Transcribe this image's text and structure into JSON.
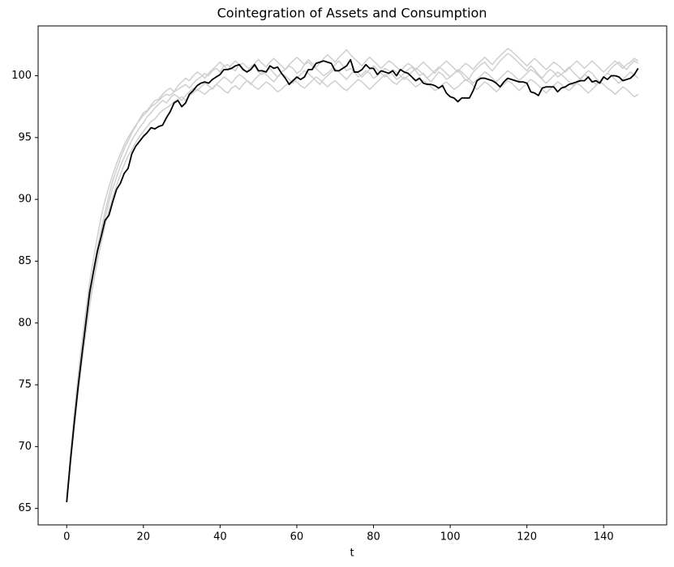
{
  "chart_data": {
    "type": "line",
    "title": "Cointegration of Assets and Consumption",
    "xlabel": "t",
    "x": [
      0,
      1,
      2,
      3,
      4,
      5,
      6,
      7,
      8,
      9,
      10,
      11,
      12,
      13,
      14,
      15,
      16,
      17,
      18,
      19,
      20,
      21,
      22,
      23,
      24,
      25,
      26,
      27,
      28,
      29,
      30,
      31,
      32,
      33,
      34,
      35,
      36,
      37,
      38,
      39,
      40,
      41,
      42,
      43,
      44,
      45,
      46,
      47,
      48,
      49,
      50,
      51,
      52,
      53,
      54,
      55,
      56,
      57,
      58,
      59,
      60,
      61,
      62,
      63,
      64,
      65,
      66,
      67,
      68,
      69,
      70,
      71,
      72,
      73,
      74,
      75,
      76,
      77,
      78,
      79,
      80,
      81,
      82,
      83,
      84,
      85,
      86,
      87,
      88,
      89,
      90,
      91,
      92,
      93,
      94,
      95,
      96,
      97,
      98,
      99,
      100,
      101,
      102,
      103,
      104,
      105,
      106,
      107,
      108,
      109,
      110,
      111,
      112,
      113,
      114,
      115,
      116,
      117,
      118,
      119,
      120,
      121,
      122,
      123,
      124,
      125,
      126,
      127,
      128,
      129,
      130,
      131,
      132,
      133,
      134,
      135,
      136,
      137,
      138,
      139,
      140,
      141,
      142,
      143,
      144,
      145,
      146,
      147,
      148,
      149
    ],
    "xlim": [
      -7.45,
      156.45
    ],
    "xticks": [
      0,
      20,
      40,
      60,
      80,
      100,
      120,
      140
    ],
    "ylim": [
      63.67,
      104.03
    ],
    "yticks": [
      65,
      70,
      75,
      80,
      85,
      90,
      95,
      100
    ],
    "grid": false,
    "series": [
      {
        "color": "#cfcfcf",
        "values": [
          65.8,
          69.5,
          72.8,
          75.8,
          78.5,
          81.0,
          83.3,
          85.2,
          87.0,
          88.6,
          89.9,
          91.0,
          92.0,
          92.9,
          93.7,
          94.4,
          95.0,
          95.5,
          96.0,
          96.4,
          96.8,
          97.1,
          97.5,
          97.7,
          98.0,
          98.3,
          98.5,
          98.4,
          98.7,
          98.9,
          99.1,
          99.3,
          99.0,
          99.4,
          99.7,
          99.9,
          100.2,
          100.0,
          100.4,
          100.6,
          100.3,
          100.8,
          100.9,
          100.6,
          100.4,
          100.9,
          101.0,
          100.7,
          100.5,
          100.8,
          100.3,
          100.1,
          100.4,
          100.6,
          100.2,
          99.9,
          100.3,
          100.5,
          100.8,
          100.6,
          100.2,
          100.4,
          100.9,
          101.1,
          100.8,
          100.6,
          100.3,
          100.0,
          100.2,
          100.5,
          100.9,
          101.2,
          100.8,
          100.4,
          100.6,
          100.3,
          99.9,
          100.1,
          100.4,
          100.2,
          99.8,
          100.0,
          100.3,
          100.6,
          100.4,
          100.1,
          99.7,
          99.9,
          100.2,
          100.5,
          100.7,
          100.4,
          100.0,
          100.2,
          99.8,
          99.5,
          99.9,
          100.3,
          100.1,
          99.7,
          99.9,
          100.2,
          100.4,
          100.1,
          99.6,
          99.8,
          100.3,
          100.6,
          100.9,
          101.1,
          100.7,
          100.4,
          100.8,
          101.2,
          101.5,
          101.8,
          101.6,
          101.3,
          101.0,
          100.7,
          100.4,
          100.8,
          100.5,
          100.1,
          99.8,
          100.2,
          100.5,
          100.3,
          99.9,
          100.1,
          100.4,
          100.7,
          100.3,
          100.0,
          99.7,
          100.1,
          100.4,
          100.2,
          99.8,
          99.5,
          99.9,
          100.2,
          100.6,
          100.9,
          101.1,
          100.8,
          100.5,
          100.9,
          101.2,
          101.0
        ]
      },
      {
        "color": "#cfcfcf",
        "values": [
          65.6,
          68.8,
          71.7,
          74.4,
          76.9,
          79.2,
          81.4,
          83.3,
          85.0,
          86.5,
          87.9,
          89.1,
          90.2,
          91.1,
          92.0,
          92.8,
          93.5,
          94.0,
          94.6,
          95.1,
          95.5,
          95.9,
          96.3,
          96.5,
          96.9,
          97.2,
          97.4,
          97.6,
          97.9,
          98.1,
          98.3,
          98.0,
          98.4,
          98.6,
          98.9,
          98.7,
          98.5,
          98.8,
          99.0,
          99.3,
          99.1,
          98.8,
          98.6,
          99.0,
          99.2,
          98.9,
          99.3,
          99.6,
          99.4,
          99.1,
          98.9,
          99.2,
          99.5,
          99.3,
          99.0,
          98.7,
          98.9,
          99.2,
          99.4,
          99.7,
          99.5,
          99.2,
          99.0,
          99.3,
          99.6,
          99.9,
          99.7,
          99.4,
          99.1,
          99.4,
          99.6,
          99.3,
          99.0,
          98.8,
          99.1,
          99.4,
          99.7,
          99.5,
          99.2,
          98.9,
          99.2,
          99.5,
          99.8,
          100.1,
          99.8,
          99.5,
          99.3,
          99.6,
          99.9,
          99.7,
          99.4,
          99.1,
          99.3,
          99.6,
          99.4,
          99.1,
          98.8,
          99.0,
          99.3,
          99.5,
          99.2,
          98.9,
          99.1,
          99.4,
          99.7,
          99.5,
          99.2,
          98.9,
          99.2,
          99.5,
          99.3,
          99.0,
          98.7,
          99.0,
          99.3,
          99.6,
          99.4,
          99.1,
          98.8,
          99.1,
          99.4,
          99.7,
          99.5,
          99.2,
          98.9,
          98.6,
          98.9,
          99.2,
          99.5,
          99.3,
          99.0,
          98.8,
          99.1,
          99.4,
          99.2,
          98.9,
          98.6,
          98.9,
          99.2,
          99.5,
          99.3,
          99.0,
          98.8,
          98.5,
          98.8,
          99.1,
          98.9,
          98.6,
          98.3,
          98.5
        ]
      },
      {
        "color": "#cfcfcf",
        "values": [
          66.0,
          69.2,
          72.2,
          75.1,
          77.7,
          80.2,
          82.4,
          84.3,
          86.1,
          87.6,
          89.0,
          90.3,
          91.5,
          92.4,
          93.3,
          94.1,
          94.7,
          95.4,
          95.9,
          96.5,
          97.0,
          97.2,
          97.6,
          98.0,
          98.1,
          98.5,
          98.8,
          99.0,
          98.7,
          99.2,
          99.5,
          99.8,
          99.6,
          100.0,
          100.3,
          100.1,
          99.8,
          100.2,
          100.5,
          100.8,
          101.1,
          100.8,
          100.5,
          100.9,
          101.2,
          100.9,
          100.6,
          100.3,
          100.7,
          101.0,
          101.3,
          101.0,
          100.7,
          101.1,
          101.4,
          101.1,
          100.8,
          100.5,
          100.9,
          101.2,
          101.5,
          101.2,
          100.9,
          101.3,
          101.0,
          100.7,
          101.0,
          101.4,
          101.7,
          101.4,
          101.1,
          101.5,
          101.8,
          102.1,
          101.7,
          101.4,
          101.1,
          100.8,
          101.2,
          101.5,
          101.2,
          100.9,
          100.6,
          100.9,
          101.2,
          101.0,
          100.7,
          100.4,
          100.7,
          101.0,
          100.8,
          100.5,
          100.8,
          101.1,
          100.8,
          100.5,
          100.2,
          100.6,
          100.9,
          101.2,
          100.9,
          100.6,
          100.3,
          100.7,
          101.0,
          100.8,
          100.5,
          100.9,
          101.2,
          101.5,
          101.2,
          100.9,
          101.3,
          101.6,
          101.9,
          102.2,
          102.0,
          101.7,
          101.4,
          101.1,
          100.8,
          101.1,
          101.4,
          101.1,
          100.8,
          100.5,
          100.8,
          101.1,
          100.9,
          100.6,
          100.3,
          100.6,
          100.9,
          101.2,
          100.9,
          100.6,
          100.9,
          101.2,
          100.9,
          100.6,
          100.3,
          100.6,
          100.9,
          101.2,
          100.9,
          100.6,
          100.9,
          101.1,
          101.4,
          101.2
        ]
      },
      {
        "color": "#cfcfcf",
        "values": [
          65.7,
          69.0,
          72.0,
          74.8,
          77.3,
          79.8,
          82.0,
          83.9,
          85.6,
          87.2,
          88.5,
          89.8,
          90.9,
          91.8,
          92.7,
          93.4,
          94.1,
          94.8,
          95.3,
          95.8,
          96.2,
          96.7,
          97.0,
          97.4,
          97.7,
          98.0,
          97.8,
          98.2,
          98.5,
          98.3,
          98.0,
          98.4,
          98.7,
          99.0,
          98.8,
          99.1,
          99.4,
          99.2,
          98.9,
          99.3,
          99.6,
          99.9,
          99.7,
          99.4,
          99.8,
          100.1,
          99.9,
          99.6,
          99.3,
          99.7,
          100.0,
          100.3,
          100.1,
          99.8,
          99.5,
          99.9,
          100.2,
          100.0,
          99.7,
          99.4,
          99.8,
          100.1,
          100.4,
          100.2,
          99.9,
          99.6,
          99.3,
          99.7,
          100.0,
          100.3,
          100.6,
          100.3,
          100.0,
          99.7,
          100.1,
          100.4,
          100.2,
          99.9,
          100.2,
          100.5,
          100.8,
          100.5,
          100.2,
          99.9,
          100.2,
          100.5,
          100.3,
          100.0,
          99.7,
          100.0,
          100.3,
          100.6,
          100.4,
          100.1,
          99.8,
          100.1,
          100.4,
          100.7,
          100.5,
          100.2,
          99.9,
          100.2,
          100.5,
          100.3,
          100.0,
          99.7,
          99.4,
          99.7,
          100.0,
          100.3,
          100.1,
          99.8,
          99.5,
          99.8,
          100.1,
          100.4,
          100.2,
          99.9,
          99.6,
          99.9,
          100.2,
          100.5,
          100.3,
          100.0,
          99.7,
          99.4,
          99.7,
          100.0,
          100.3,
          100.1,
          99.8,
          99.5,
          99.2,
          99.5,
          99.8,
          100.1,
          99.9,
          99.6,
          99.3,
          99.6,
          99.9,
          100.2,
          100.0,
          99.7,
          99.4,
          99.7,
          100.0,
          100.3,
          100.1,
          99.8
        ]
      },
      {
        "color": "#000000",
        "values": [
          65.5,
          68.9,
          72.0,
          74.9,
          77.5,
          80.0,
          82.5,
          84.2,
          85.8,
          87.0,
          88.3,
          88.7,
          89.8,
          90.8,
          91.3,
          92.1,
          92.5,
          93.7,
          94.3,
          94.7,
          95.1,
          95.4,
          95.8,
          95.7,
          95.9,
          96.0,
          96.6,
          97.1,
          97.8,
          98.0,
          97.5,
          97.8,
          98.5,
          98.8,
          99.2,
          99.4,
          99.5,
          99.4,
          99.7,
          99.9,
          100.1,
          100.5,
          100.5,
          100.6,
          100.8,
          100.9,
          100.5,
          100.3,
          100.5,
          100.9,
          100.4,
          100.4,
          100.3,
          100.8,
          100.6,
          100.7,
          100.2,
          99.8,
          99.3,
          99.6,
          99.9,
          99.7,
          99.9,
          100.5,
          100.5,
          101.0,
          101.1,
          101.2,
          101.1,
          101.0,
          100.4,
          100.4,
          100.6,
          100.8,
          101.3,
          100.3,
          100.3,
          100.5,
          100.9,
          100.6,
          100.6,
          100.1,
          100.4,
          100.3,
          100.2,
          100.4,
          100.0,
          100.5,
          100.3,
          100.2,
          99.9,
          99.6,
          99.8,
          99.4,
          99.3,
          99.3,
          99.2,
          99.0,
          99.2,
          98.6,
          98.3,
          98.2,
          97.9,
          98.2,
          98.2,
          98.2,
          98.8,
          99.6,
          99.8,
          99.8,
          99.7,
          99.6,
          99.4,
          99.1,
          99.5,
          99.8,
          99.7,
          99.6,
          99.5,
          99.5,
          99.4,
          98.7,
          98.6,
          98.4,
          99.0,
          99.1,
          99.1,
          99.1,
          98.7,
          99.0,
          99.1,
          99.3,
          99.4,
          99.5,
          99.6,
          99.6,
          99.9,
          99.5,
          99.6,
          99.4,
          99.9,
          99.7,
          100.0,
          100.0,
          99.9,
          99.6,
          99.7,
          99.8,
          100.1,
          100.6
        ]
      }
    ]
  }
}
